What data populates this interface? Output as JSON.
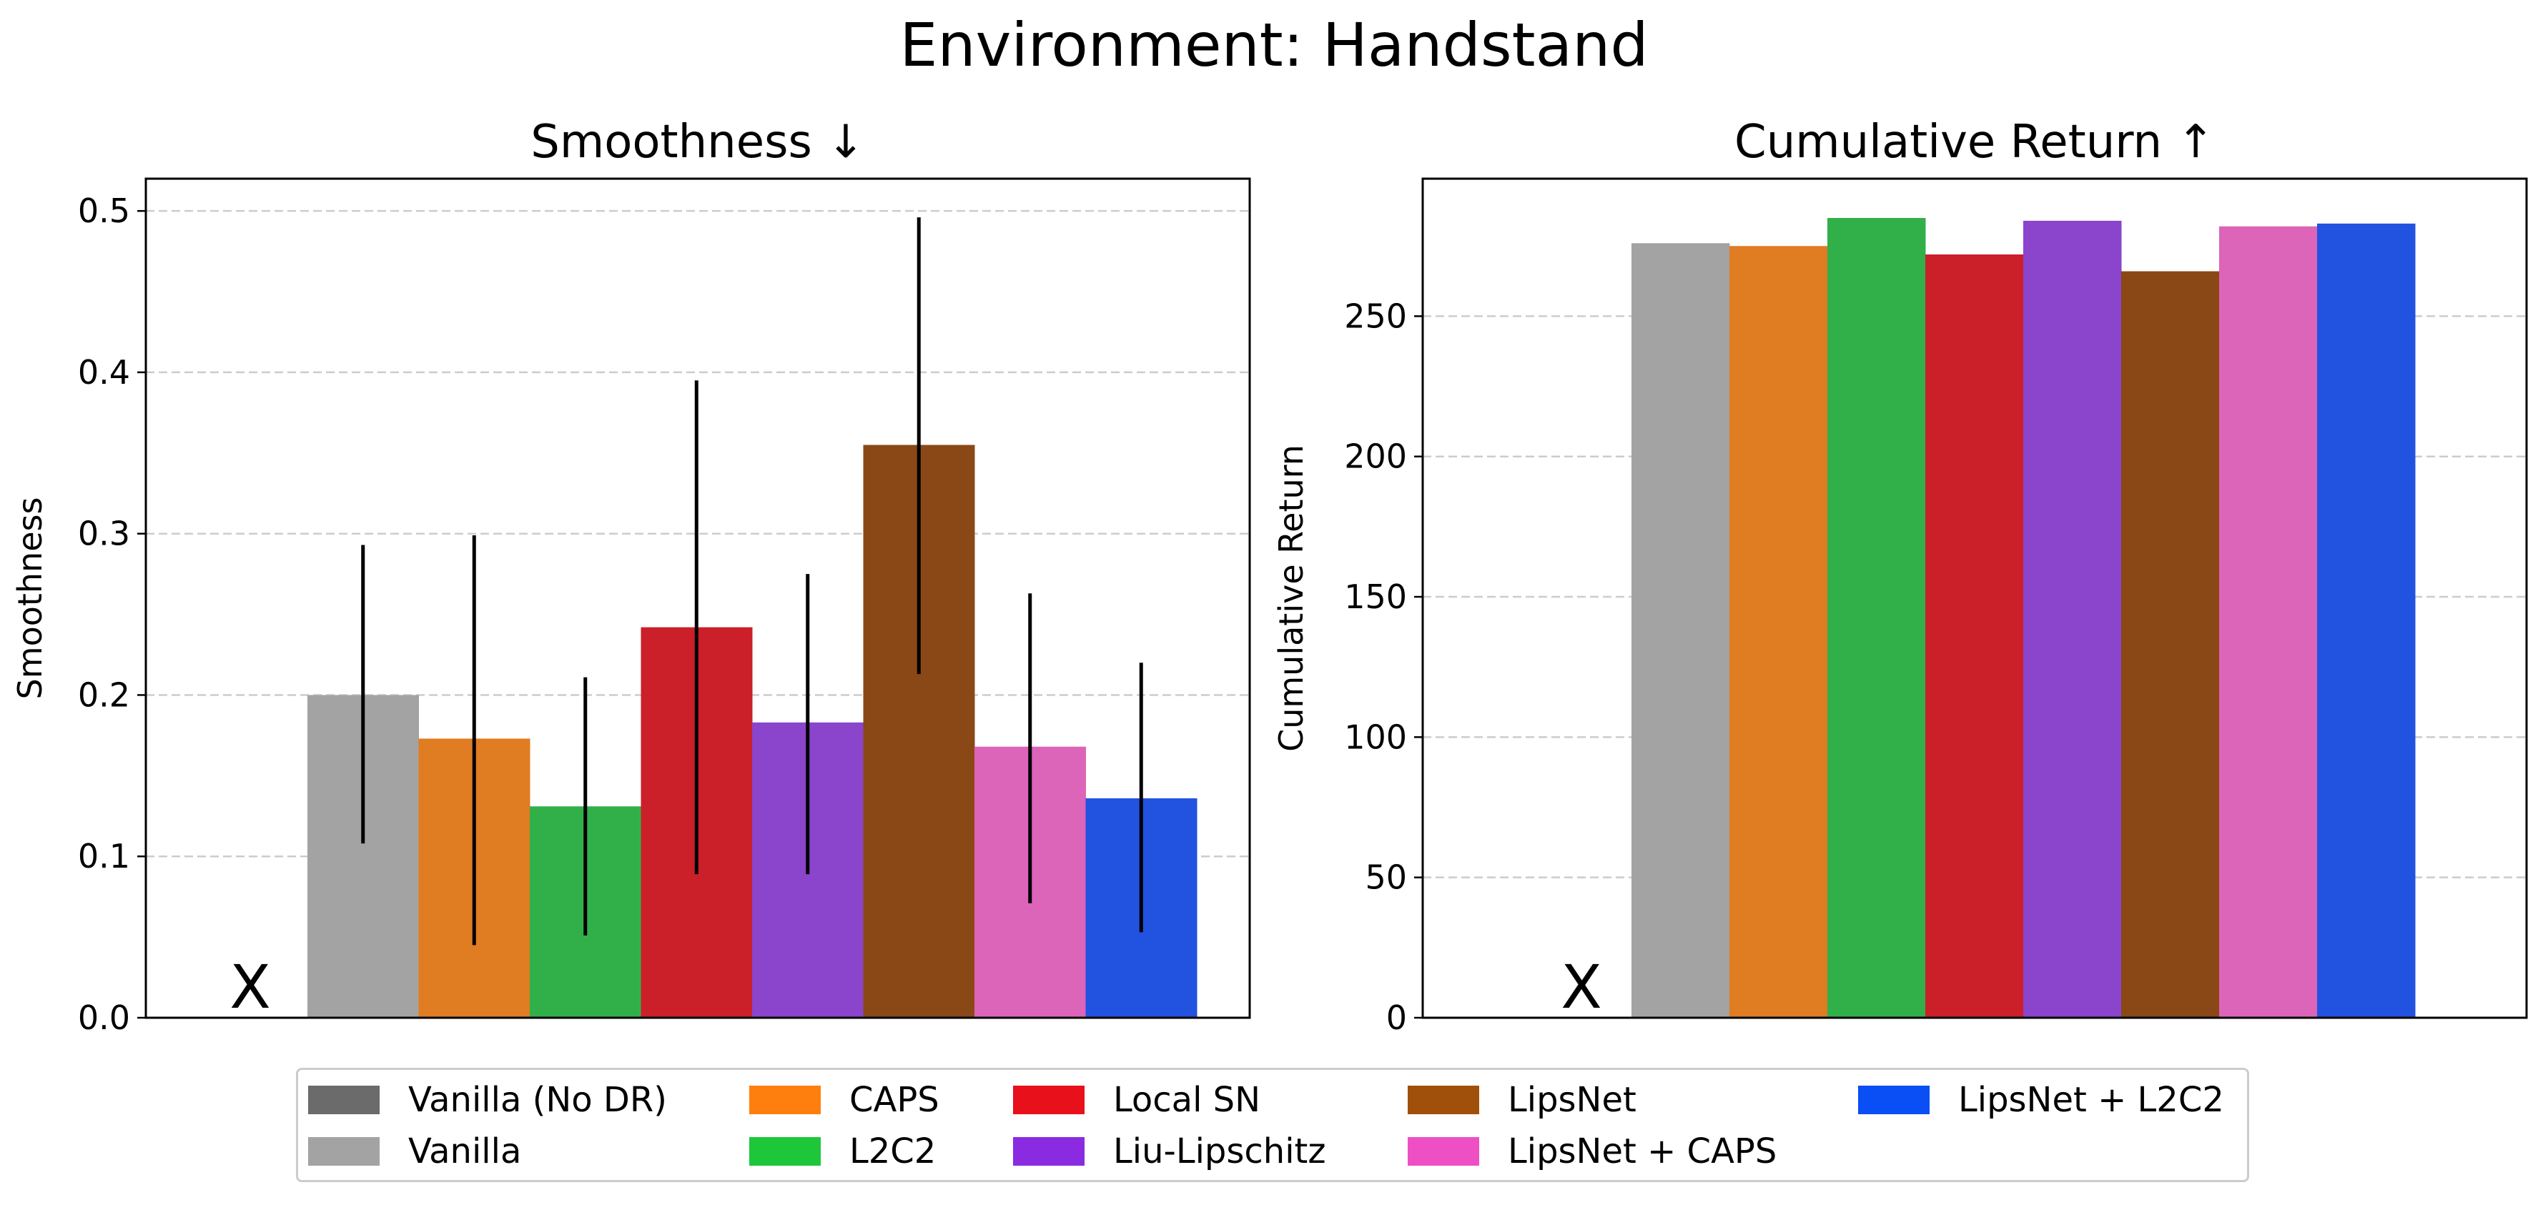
{
  "figure_title": "Environment: Handstand",
  "colors": {
    "vanilla_no_dr": "#6b6b6b",
    "vanilla": "#a3a3a3",
    "caps": "#e07c22",
    "l2c2": "#31b04a",
    "local_sn": "#cb1f29",
    "liu_lipschitz": "#8b44cc",
    "lipsnet": "#8a4816",
    "lipsnet_caps": "#dc64b9",
    "lipsnet_l2c2": "#2252e0",
    "grid": "#cccccc"
  },
  "legend": [
    {
      "label": "Vanilla (No DR)",
      "color": "#6b6b6b"
    },
    {
      "label": "Vanilla",
      "color": "#a3a3a3"
    },
    {
      "label": "CAPS",
      "color": "#ff7f0e"
    },
    {
      "label": "L2C2",
      "color": "#1ec63a"
    },
    {
      "label": "Local SN",
      "color": "#e8101a"
    },
    {
      "label": "Liu-Lipschitz",
      "color": "#8a2be2"
    },
    {
      "label": "LipsNet",
      "color": "#a0500a"
    },
    {
      "label": "LipsNet + CAPS",
      "color": "#ee4fc4"
    },
    {
      "label": "LipsNet + L2C2",
      "color": "#0a4ef5"
    }
  ],
  "chart_data": [
    {
      "type": "bar",
      "title": "Smoothness ↓",
      "xlabel": "",
      "ylabel": "Smoothness",
      "ylim": [
        0,
        0.52
      ],
      "yticks": [
        0.0,
        0.1,
        0.2,
        0.3,
        0.4,
        0.5
      ],
      "ytick_labels": [
        "0.0",
        "0.1",
        "0.2",
        "0.3",
        "0.4",
        "0.5"
      ],
      "grid": true,
      "missing_marker": "X",
      "categories": [
        "Vanilla (No DR)",
        "Vanilla",
        "CAPS",
        "L2C2",
        "Local SN",
        "Liu-Lipschitz",
        "LipsNet",
        "LipsNet + CAPS",
        "LipsNet + L2C2"
      ],
      "values": [
        null,
        0.2,
        0.173,
        0.131,
        0.242,
        0.183,
        0.355,
        0.168,
        0.136
      ],
      "error_low": [
        null,
        0.108,
        0.045,
        0.051,
        0.089,
        0.089,
        0.213,
        0.071,
        0.053
      ],
      "error_high": [
        null,
        0.293,
        0.299,
        0.211,
        0.395,
        0.275,
        0.496,
        0.263,
        0.22
      ]
    },
    {
      "type": "bar",
      "title": "Cumulative Return ↑",
      "xlabel": "",
      "ylabel": "Cumulative Return",
      "ylim": [
        0,
        299
      ],
      "yticks": [
        0,
        50,
        100,
        150,
        200,
        250
      ],
      "ytick_labels": [
        "0",
        "50",
        "100",
        "150",
        "200",
        "250"
      ],
      "grid": true,
      "missing_marker": "X",
      "categories": [
        "Vanilla (No DR)",
        "Vanilla",
        "CAPS",
        "L2C2",
        "Local SN",
        "Liu-Lipschitz",
        "LipsNet",
        "LipsNet + CAPS",
        "LipsNet + L2C2"
      ],
      "values": [
        null,
        276,
        275,
        285,
        272,
        284,
        266,
        282,
        283
      ]
    }
  ]
}
